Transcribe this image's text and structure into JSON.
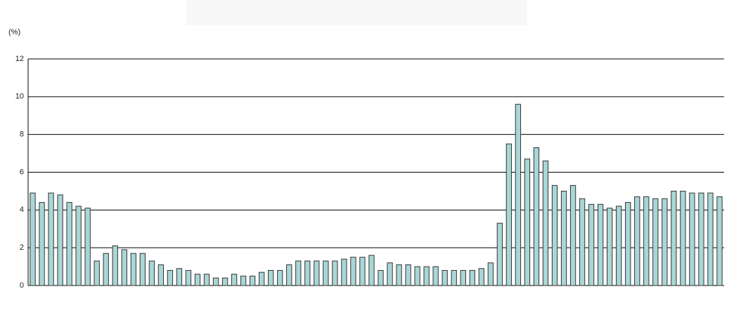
{
  "chart_data": {
    "type": "bar",
    "y_label": "(%)",
    "categories": [
      null,
      null,
      null,
      null,
      null,
      null,
      null,
      null,
      null,
      null,
      null,
      null,
      null,
      null,
      null,
      null,
      null,
      null,
      null,
      null,
      null,
      null,
      null,
      null,
      null,
      null,
      null,
      null,
      null,
      null,
      null,
      null,
      null,
      null,
      null,
      null,
      null,
      null,
      null,
      null,
      null,
      null,
      null,
      null,
      null,
      null,
      null,
      null,
      null,
      null,
      null,
      null,
      null,
      null,
      null,
      null,
      null,
      null,
      null,
      null,
      null,
      null,
      null,
      null,
      null,
      null,
      null,
      null,
      null,
      null,
      null,
      null,
      null,
      null,
      null,
      null
    ],
    "values": [
      4.9,
      4.4,
      4.9,
      4.8,
      4.4,
      4.2,
      4.1,
      1.3,
      1.7,
      2.1,
      1.9,
      1.7,
      1.7,
      1.3,
      1.1,
      0.8,
      0.9,
      0.8,
      0.6,
      0.6,
      0.4,
      0.4,
      0.6,
      0.5,
      0.5,
      0.7,
      0.8,
      0.8,
      1.1,
      1.3,
      1.3,
      1.3,
      1.3,
      1.3,
      1.4,
      1.5,
      1.5,
      1.6,
      0.8,
      1.2,
      1.1,
      1.1,
      1.0,
      1.0,
      1.0,
      0.8,
      0.8,
      0.8,
      0.8,
      0.9,
      1.2,
      3.3,
      7.5,
      9.6,
      6.7,
      7.3,
      6.6,
      5.3,
      5.0,
      5.3,
      4.6,
      4.3,
      4.3,
      4.1,
      4.2,
      4.4,
      4.7,
      4.7,
      4.6,
      4.6,
      5.0,
      5.0,
      4.9,
      4.9,
      4.9,
      4.7
    ],
    "color": "#a9d6d6",
    "ylim": [
      0,
      12
    ],
    "yticks": [
      0,
      2,
      4,
      6,
      8,
      10,
      12
    ],
    "grid": true
  }
}
